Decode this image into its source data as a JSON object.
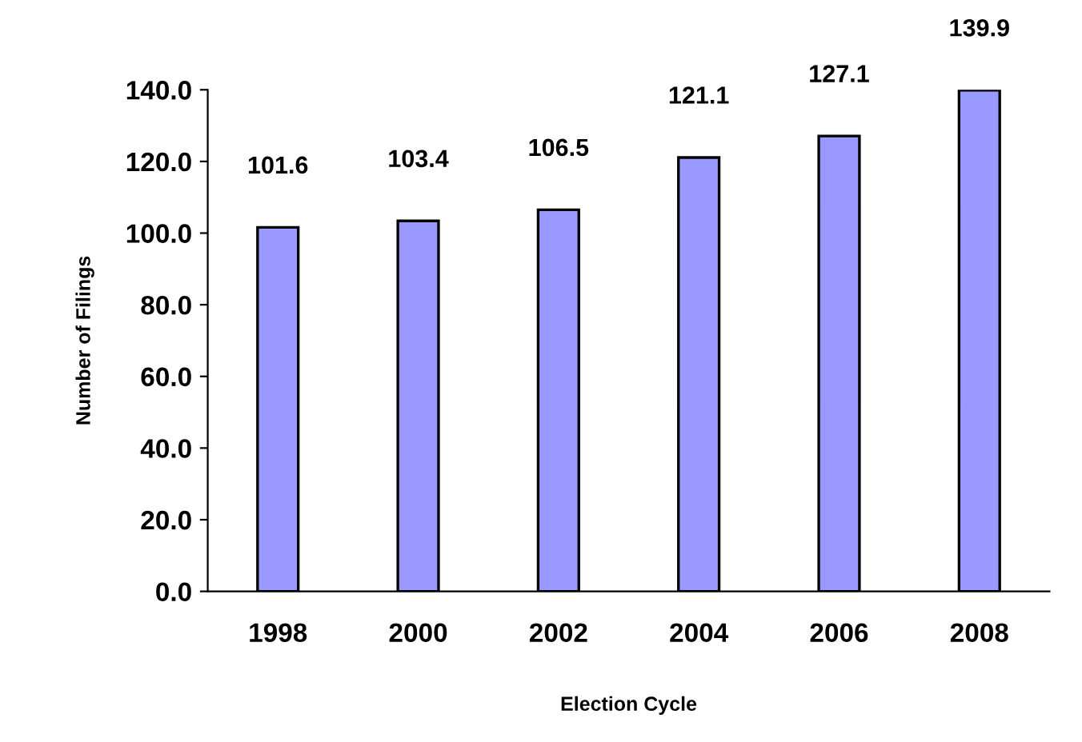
{
  "chart_data": {
    "type": "bar",
    "xlabel": "Election Cycle",
    "ylabel": "Number of Filings",
    "categories": [
      "1998",
      "2000",
      "2002",
      "2004",
      "2006",
      "2008"
    ],
    "values": [
      101.6,
      103.4,
      106.5,
      121.1,
      127.1,
      139.9
    ],
    "color": "#9999ff",
    "data_labels": true,
    "grid": false,
    "legend": false,
    "ylim": [
      0,
      140
    ],
    "yticks": [
      {
        "value": 0,
        "label": "0.0"
      },
      {
        "value": 20,
        "label": "20.0"
      },
      {
        "value": 40,
        "label": "40.0"
      },
      {
        "value": 60,
        "label": "60.0"
      },
      {
        "value": 80,
        "label": "80.0"
      },
      {
        "value": 100,
        "label": "100.0"
      },
      {
        "value": 120,
        "label": "120.0"
      },
      {
        "value": 140,
        "label": "140.0"
      }
    ]
  }
}
